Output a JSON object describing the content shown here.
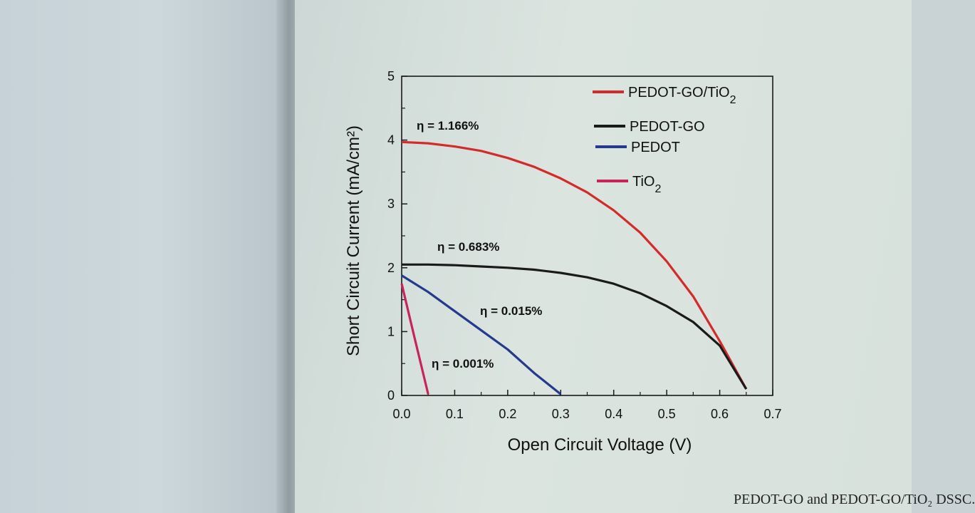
{
  "chart_data": {
    "type": "line",
    "xlabel": "Open Circuit Voltage (V)",
    "ylabel": "Short Circuit Current (mA/cm²)",
    "xlim": [
      0,
      0.7
    ],
    "ylim": [
      0,
      5
    ],
    "xticks": [
      "0.0",
      "0.1",
      "0.2",
      "0.3",
      "0.4",
      "0.5",
      "0.6",
      "0.7"
    ],
    "yticks": [
      "0",
      "1",
      "2",
      "3",
      "4",
      "5"
    ],
    "grid": false,
    "legend_position": "top-right",
    "series": [
      {
        "name": "PEDOT-GO/TiO2",
        "color": "#d42a2a",
        "annotation": "η = 1.166%",
        "x": [
          0,
          0.05,
          0.1,
          0.15,
          0.2,
          0.25,
          0.3,
          0.35,
          0.4,
          0.45,
          0.5,
          0.55,
          0.6,
          0.65
        ],
        "y": [
          3.97,
          3.95,
          3.9,
          3.83,
          3.72,
          3.58,
          3.4,
          3.18,
          2.9,
          2.55,
          2.1,
          1.55,
          0.85,
          0.1
        ]
      },
      {
        "name": "PEDOT-GO",
        "color": "#1a1a1a",
        "annotation": "η = 0.683%",
        "x": [
          0,
          0.05,
          0.1,
          0.15,
          0.2,
          0.25,
          0.3,
          0.35,
          0.4,
          0.45,
          0.5,
          0.55,
          0.6,
          0.65
        ],
        "y": [
          2.05,
          2.05,
          2.04,
          2.02,
          2.0,
          1.97,
          1.92,
          1.85,
          1.75,
          1.6,
          1.4,
          1.15,
          0.78,
          0.1
        ]
      },
      {
        "name": "PEDOT",
        "color": "#243a8c",
        "annotation": "η = 0.015%",
        "x": [
          0,
          0.05,
          0.1,
          0.15,
          0.2,
          0.25,
          0.3
        ],
        "y": [
          1.88,
          1.62,
          1.32,
          1.02,
          0.72,
          0.35,
          0.02
        ]
      },
      {
        "name": "TiO2",
        "color": "#c8245a",
        "annotation": "η = 0.001%",
        "x": [
          0,
          0.025,
          0.05
        ],
        "y": [
          1.75,
          0.88,
          0.02
        ]
      }
    ]
  },
  "caption": "PEDOT-GO and PEDOT-GO/TiO₂ DSSC."
}
